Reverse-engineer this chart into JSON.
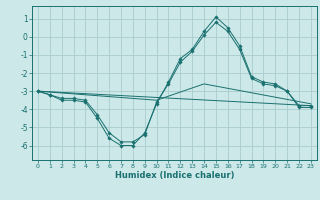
{
  "xlabel": "Humidex (Indice chaleur)",
  "background_color": "#cce8e8",
  "grid_color": "#aacccc",
  "line_color": "#1a7070",
  "xlim": [
    -0.5,
    23.5
  ],
  "ylim": [
    -6.8,
    1.7
  ],
  "yticks": [
    1,
    0,
    -1,
    -2,
    -3,
    -4,
    -5,
    -6
  ],
  "xticks": [
    0,
    1,
    2,
    3,
    4,
    5,
    6,
    7,
    8,
    9,
    10,
    11,
    12,
    13,
    14,
    15,
    16,
    17,
    18,
    19,
    20,
    21,
    22,
    23
  ],
  "series": [
    {
      "x": [
        0,
        1,
        2,
        3,
        4,
        5,
        6,
        7,
        8,
        9,
        10,
        11,
        12,
        13,
        14,
        15,
        16,
        17,
        18,
        19,
        20,
        21,
        22,
        23
      ],
      "y": [
        -3.0,
        -3.2,
        -3.5,
        -3.5,
        -3.6,
        -4.5,
        -5.6,
        -6.0,
        -6.0,
        -5.3,
        -3.7,
        -2.5,
        -1.2,
        -0.7,
        0.3,
        1.1,
        0.5,
        -0.5,
        -2.2,
        -2.5,
        -2.6,
        -3.0,
        -3.8,
        -3.8
      ],
      "marker": "D",
      "markersize": 1.8
    },
    {
      "x": [
        0,
        1,
        2,
        3,
        4,
        5,
        6,
        7,
        8,
        9,
        10,
        11,
        12,
        13,
        14,
        15,
        16,
        17,
        18,
        19,
        20,
        21,
        22,
        23
      ],
      "y": [
        -3.0,
        -3.2,
        -3.4,
        -3.4,
        -3.5,
        -4.3,
        -5.3,
        -5.8,
        -5.8,
        -5.4,
        -3.6,
        -2.6,
        -1.4,
        -0.8,
        0.1,
        0.8,
        0.3,
        -0.7,
        -2.3,
        -2.6,
        -2.7,
        -3.0,
        -3.9,
        -3.9
      ],
      "marker": "D",
      "markersize": 1.8
    },
    {
      "x": [
        0,
        23
      ],
      "y": [
        -3.0,
        -3.8
      ],
      "marker": null,
      "markersize": 0
    },
    {
      "x": [
        0,
        10,
        14,
        23
      ],
      "y": [
        -3.0,
        -3.5,
        -2.6,
        -3.7
      ],
      "marker": null,
      "markersize": 0
    }
  ]
}
